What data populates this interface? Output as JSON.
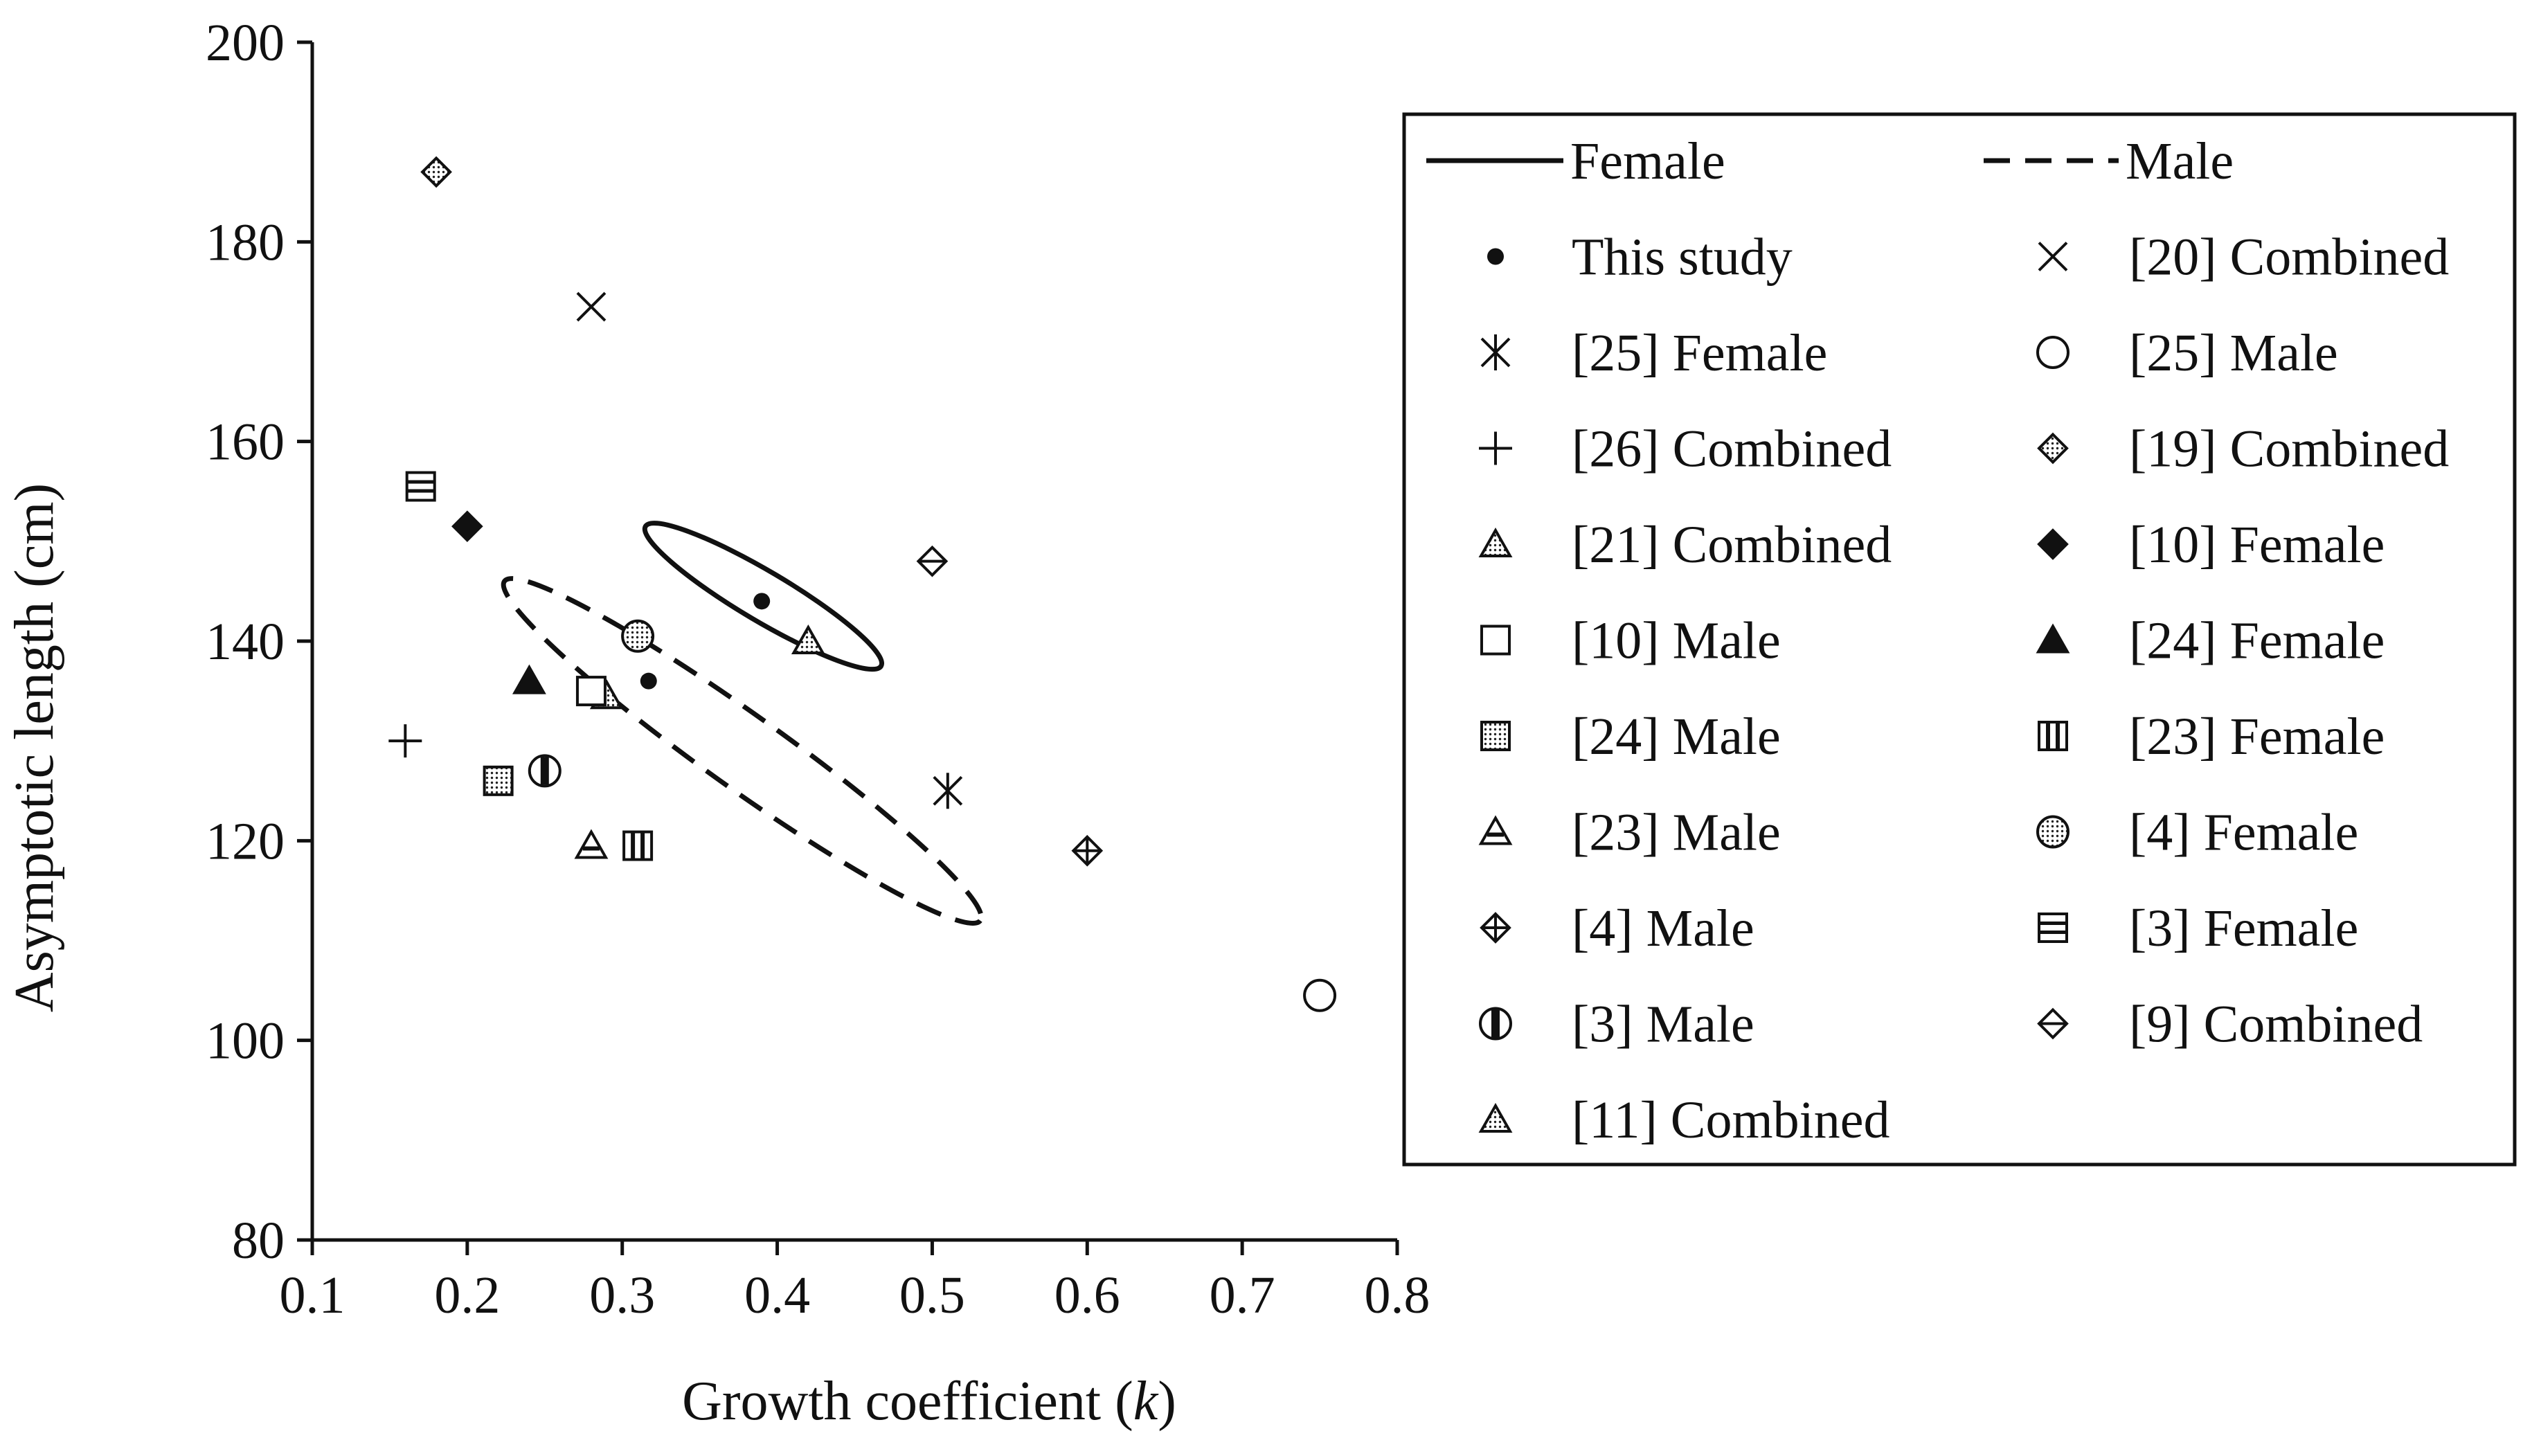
{
  "chart_data": {
    "type": "scatter",
    "xlabel": "Growth coefficient (",
    "xlabel_italic": "k",
    "xlabel_close": ")",
    "ylabel": "Asymptotic length (cm)",
    "xlim": [
      0.1,
      0.8
    ],
    "ylim": [
      80,
      200
    ],
    "x_ticks": [
      0.1,
      0.2,
      0.3,
      0.4,
      0.5,
      0.6,
      0.7,
      0.8
    ],
    "x_tick_labels": [
      "0.1",
      "0.2",
      "0.3",
      "0.4",
      "0.5",
      "0.6",
      "0.7",
      "0.8"
    ],
    "y_ticks": [
      80,
      100,
      120,
      140,
      160,
      180,
      200
    ],
    "y_tick_labels": [
      "80",
      "100",
      "120",
      "140",
      "160",
      "180",
      "200"
    ],
    "grid": false,
    "legend_position": "right",
    "ellipses": [
      {
        "name": "Female",
        "style": "solid",
        "center": [
          0.39,
          144.5
        ],
        "ends": [
          [
            0.315,
            151.5
          ],
          [
            0.467,
            137.5
          ]
        ],
        "semi_minor_k": 0.016
      },
      {
        "name": "Male",
        "style": "dashed",
        "center": [
          0.377,
          129
        ],
        "ends": [
          [
            0.224,
            146
          ],
          [
            0.531,
            112
          ]
        ],
        "semi_minor_k": 0.024
      }
    ],
    "series": [
      {
        "name": "This study",
        "marker": "dot",
        "points": [
          [
            0.39,
            144
          ],
          [
            0.317,
            136
          ]
        ]
      },
      {
        "name": "[20] Combined",
        "marker": "x",
        "points": [
          [
            0.28,
            173.5
          ]
        ]
      },
      {
        "name": "[25] Female",
        "marker": "asterisk",
        "points": [
          [
            0.51,
            125
          ]
        ]
      },
      {
        "name": "[25] Male",
        "marker": "circle-open",
        "points": [
          [
            0.75,
            104.5
          ]
        ]
      },
      {
        "name": "[26] Combined",
        "marker": "plus",
        "points": [
          [
            0.16,
            130
          ]
        ]
      },
      {
        "name": "[19] Combined",
        "marker": "diamond-dotted",
        "points": [
          [
            0.18,
            187
          ]
        ]
      },
      {
        "name": "[21] Combined",
        "marker": "triangle-dotted",
        "points": [
          [
            0.29,
            134.5
          ]
        ]
      },
      {
        "name": "[10] Female",
        "marker": "diamond-filled",
        "points": [
          [
            0.2,
            151.5
          ]
        ]
      },
      {
        "name": "[10] Male",
        "marker": "square-open",
        "points": [
          [
            0.28,
            135
          ]
        ]
      },
      {
        "name": "[24] Female",
        "marker": "triangle-filled",
        "points": [
          [
            0.24,
            136
          ]
        ]
      },
      {
        "name": "[24] Male",
        "marker": "square-dotted",
        "points": [
          [
            0.22,
            126
          ]
        ]
      },
      {
        "name": "[23] Female",
        "marker": "square-vbars",
        "points": [
          [
            0.31,
            119.5
          ]
        ]
      },
      {
        "name": "[23] Male",
        "marker": "triangle-hbar",
        "points": [
          [
            0.28,
            119.5
          ]
        ]
      },
      {
        "name": "[4] Female",
        "marker": "circle-dotted",
        "points": [
          [
            0.31,
            140.5
          ]
        ]
      },
      {
        "name": "[4] Male",
        "marker": "diamond-cross",
        "points": [
          [
            0.6,
            119
          ]
        ]
      },
      {
        "name": "[3] Female",
        "marker": "square-hbars",
        "points": [
          [
            0.17,
            155.5
          ]
        ]
      },
      {
        "name": "[3] Male",
        "marker": "circle-vbar",
        "points": [
          [
            0.25,
            127
          ]
        ]
      },
      {
        "name": "[9] Combined",
        "marker": "diamond-hline",
        "points": [
          [
            0.5,
            148
          ]
        ]
      },
      {
        "name": "[11] Combined",
        "marker": "triangle-dotted",
        "points": [
          [
            0.42,
            140
          ]
        ]
      }
    ],
    "legend_line_entries": [
      {
        "label": "Female",
        "style": "solid"
      },
      {
        "label": "Male",
        "style": "dashed"
      }
    ]
  }
}
